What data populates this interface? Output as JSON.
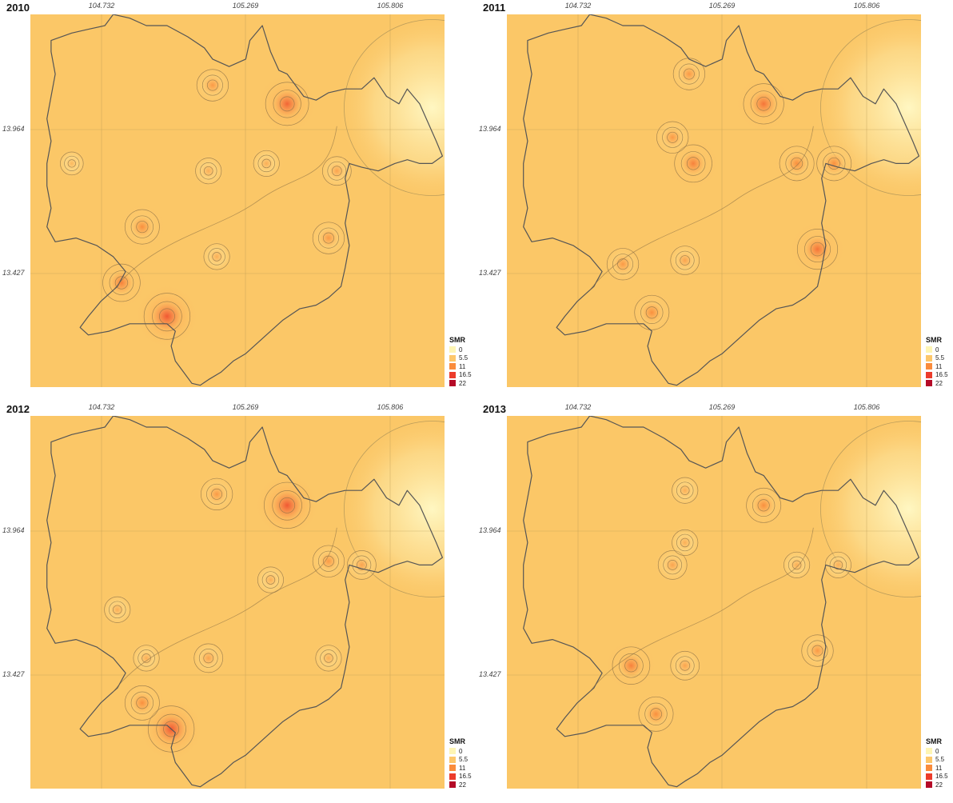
{
  "panels": [
    {
      "year": "2010",
      "hotspots": [
        [
          0.62,
          0.24,
          10
        ],
        [
          0.33,
          0.81,
          11
        ],
        [
          0.27,
          0.57,
          7
        ],
        [
          0.72,
          0.6,
          6
        ],
        [
          0.44,
          0.19,
          6
        ],
        [
          0.74,
          0.42,
          5
        ],
        [
          0.22,
          0.72,
          8
        ],
        [
          0.57,
          0.4,
          4
        ],
        [
          0.43,
          0.42,
          4
        ],
        [
          0.1,
          0.4,
          3
        ],
        [
          0.45,
          0.65,
          4
        ]
      ]
    },
    {
      "year": "2011",
      "hotspots": [
        [
          0.62,
          0.24,
          9
        ],
        [
          0.75,
          0.63,
          9
        ],
        [
          0.45,
          0.4,
          8
        ],
        [
          0.4,
          0.33,
          6
        ],
        [
          0.7,
          0.4,
          7
        ],
        [
          0.79,
          0.4,
          7
        ],
        [
          0.35,
          0.8,
          7
        ],
        [
          0.28,
          0.67,
          6
        ],
        [
          0.44,
          0.16,
          6
        ],
        [
          0.43,
          0.66,
          5
        ]
      ]
    },
    {
      "year": "2012",
      "hotspots": [
        [
          0.62,
          0.24,
          11
        ],
        [
          0.34,
          0.84,
          11
        ],
        [
          0.27,
          0.77,
          7
        ],
        [
          0.45,
          0.21,
          6
        ],
        [
          0.72,
          0.39,
          6
        ],
        [
          0.8,
          0.4,
          5
        ],
        [
          0.43,
          0.65,
          5
        ],
        [
          0.21,
          0.52,
          4
        ],
        [
          0.28,
          0.65,
          4
        ],
        [
          0.58,
          0.44,
          4
        ],
        [
          0.72,
          0.65,
          4
        ]
      ]
    },
    {
      "year": "2013",
      "hotspots": [
        [
          0.62,
          0.24,
          7
        ],
        [
          0.3,
          0.67,
          8
        ],
        [
          0.36,
          0.8,
          7
        ],
        [
          0.43,
          0.67,
          5
        ],
        [
          0.75,
          0.63,
          6
        ],
        [
          0.4,
          0.4,
          5
        ],
        [
          0.43,
          0.34,
          4
        ],
        [
          0.7,
          0.4,
          4
        ],
        [
          0.8,
          0.4,
          4
        ],
        [
          0.43,
          0.2,
          4
        ]
      ]
    }
  ],
  "axes": {
    "x_ticks": [
      "104.732",
      "105.269",
      "105.806"
    ],
    "y_ticks": [
      "13.964",
      "13.427"
    ]
  },
  "legend": {
    "title": "SMR",
    "items": [
      {
        "label": "0",
        "color": "#fef5b4"
      },
      {
        "label": "5.5",
        "color": "#fdc76a"
      },
      {
        "label": "11",
        "color": "#fa8c3c"
      },
      {
        "label": "16.5",
        "color": "#ec3c2b"
      },
      {
        "label": "22",
        "color": "#b50a27"
      }
    ]
  },
  "colors": {
    "background": "#fbc767",
    "boundary": "#555555",
    "grid": "#b89a55"
  }
}
